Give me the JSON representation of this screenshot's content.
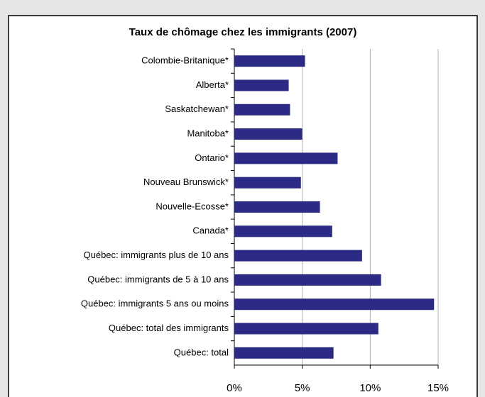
{
  "chart_data": {
    "type": "barh",
    "title": "Taux de chômage chez les immigrants (2007)",
    "categories": [
      "Colombie-Britanique*",
      "Alberta*",
      "Saskatchewan*",
      "Manitoba*",
      "Ontario*",
      "Nouveau Brunswick*",
      "Nouvelle-Ecosse*",
      "Canada*",
      "Québec: immigrants plus de 10 ans",
      "Québec: immigrants de 5 à 10 ans",
      "Québec: immigrants 5 ans ou moins",
      "Québec: total des immigrants",
      "Québec: total"
    ],
    "values": [
      5.2,
      4.0,
      4.1,
      5.0,
      7.6,
      4.9,
      6.3,
      7.2,
      9.4,
      10.8,
      14.7,
      10.6,
      7.3
    ],
    "color": "#2b2b86",
    "xlim": [
      0,
      15
    ],
    "xticks": [
      {
        "value": 0,
        "label": "0%"
      },
      {
        "value": 5,
        "label": "5%"
      },
      {
        "value": 10,
        "label": "10%"
      },
      {
        "value": 15,
        "label": "15%"
      }
    ],
    "grid": true
  }
}
